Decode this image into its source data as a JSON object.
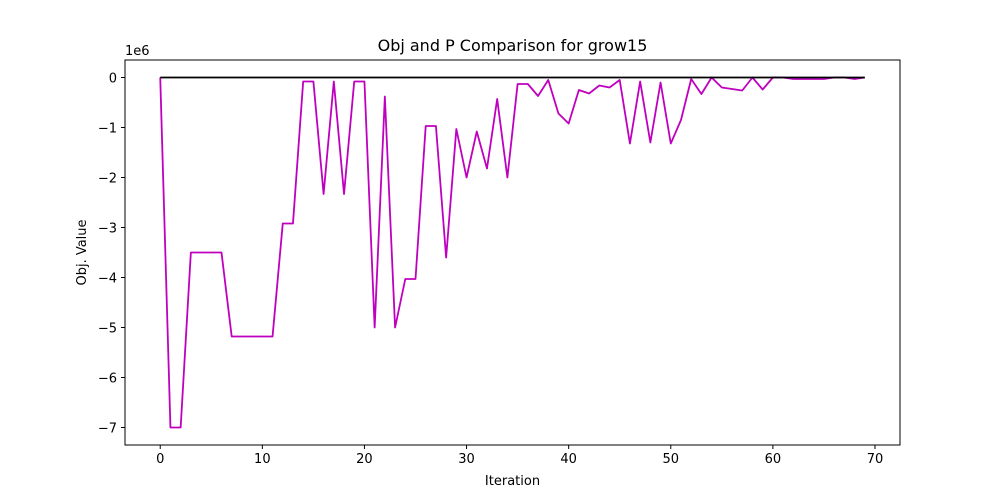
{
  "chart_data": {
    "type": "line",
    "title": "Obj and P Comparison for grow15",
    "xlabel": "Iteration",
    "ylabel": "Obj. Value",
    "y_offset_text": "1e6",
    "xlim": [
      -3.45,
      72.45
    ],
    "ylim": [
      -7.35,
      0.35
    ],
    "x_ticks": [
      0,
      10,
      20,
      30,
      40,
      50,
      60,
      70
    ],
    "x_tick_labels": [
      "0",
      "10",
      "20",
      "30",
      "40",
      "50",
      "60",
      "70"
    ],
    "y_ticks": [
      0,
      -1,
      -2,
      -3,
      -4,
      -5,
      -6,
      -7
    ],
    "y_tick_labels": [
      "0",
      "−1",
      "−2",
      "−3",
      "−4",
      "−5",
      "−6",
      "−7"
    ],
    "grid": false,
    "series": [
      {
        "color": "#bf00bf",
        "x": [
          0,
          1,
          2,
          3,
          4,
          5,
          6,
          7,
          8,
          9,
          10,
          11,
          12,
          13,
          14,
          15,
          16,
          17,
          18,
          19,
          20,
          21,
          22,
          23,
          24,
          25,
          26,
          27,
          28,
          29,
          30,
          31,
          32,
          33,
          34,
          35,
          36,
          37,
          38,
          39,
          40,
          41,
          42,
          43,
          44,
          45,
          46,
          47,
          48,
          49,
          50,
          51,
          52,
          53,
          54,
          55,
          56,
          57,
          58,
          59,
          60,
          61,
          62,
          63,
          64,
          65,
          66,
          67,
          68,
          69
        ],
        "y": [
          0,
          -7,
          -7,
          -3.5,
          -3.5,
          -3.5,
          -3.5,
          -5.18,
          -5.18,
          -5.18,
          -5.18,
          -5.18,
          -2.92,
          -2.92,
          -0.08,
          -0.08,
          -2.33,
          -0.08,
          -2.33,
          -0.08,
          -0.08,
          -5,
          -0.38,
          -5,
          -4.03,
          -4.03,
          -0.97,
          -0.97,
          -3.6,
          -1.03,
          -2,
          -1.08,
          -1.82,
          -0.43,
          -2,
          -0.13,
          -0.13,
          -0.37,
          -0.05,
          -0.72,
          -0.92,
          -0.25,
          -0.32,
          -0.16,
          -0.2,
          -0.05,
          -1.32,
          -0.08,
          -1.3,
          -0.1,
          -1.32,
          -0.85,
          -0.03,
          -0.33,
          0,
          -0.2,
          -0.23,
          -0.26,
          0,
          -0.24,
          0,
          0,
          -0.03,
          -0.03,
          -0.03,
          -0.03,
          0,
          0,
          -0.03,
          0
        ]
      },
      {
        "color": "#000000",
        "x": [
          0,
          69
        ],
        "y": [
          0,
          0
        ]
      }
    ]
  }
}
